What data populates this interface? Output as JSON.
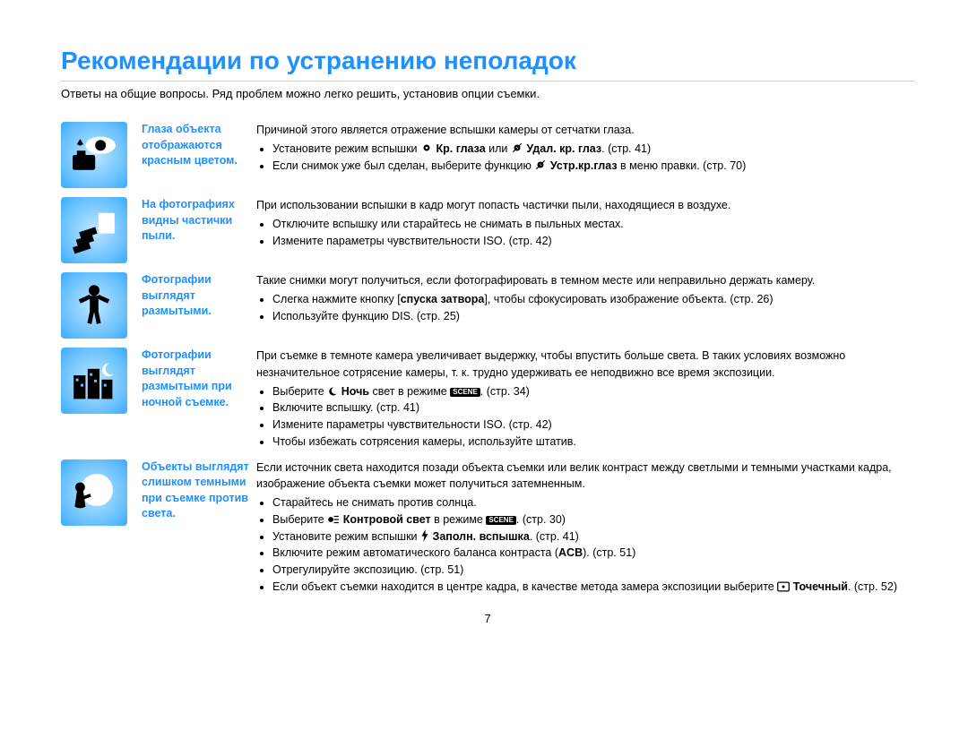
{
  "colors": {
    "title": "#1e90ff",
    "text": "#000000",
    "rule": "#cfcfcf",
    "icon_bg_inner": "#bfe7ff",
    "icon_bg_outer": "#3aaaff"
  },
  "title": "Рекомендации по устранению неполадок",
  "intro": "Ответы на общие вопросы. Ряд проблем можно легко решить, установив опции съемки.",
  "page_number": "7",
  "rows": [
    {
      "icon": "redeye",
      "heading": "Глаза объекта отображаются красным цветом.",
      "lead": "Причиной этого является отражение вспышки камеры от сетчатки глаза.",
      "bullets_html": [
        "Установите режим вспышки <svg class='inline-icon' width='14' height='14' viewBox='0 0 24 24'><circle cx='12' cy='12' r='6' fill='#000'/><circle cx='12' cy='12' r='2.2' fill='#fff'/></svg> <span class='bold'>Кр. глаза</span> или <svg class='inline-icon' width='14' height='14' viewBox='0 0 24 24'><circle cx='12' cy='12' r='6' fill='#000'/><circle cx='12' cy='12' r='2.2' fill='#fff'/><line x1='4' y1='20' x2='20' y2='4' stroke='#000' stroke-width='2'/></svg> <span class='bold'>Удал. кр. глаз</span>. (стр. 41)",
        "Если снимок уже был сделан, выберите функцию <svg class='inline-icon' width='14' height='14' viewBox='0 0 24 24'><circle cx='12' cy='12' r='6' fill='#000'/><circle cx='12' cy='12' r='2.2' fill='#fff'/><line x1='4' y1='20' x2='20' y2='4' stroke='#000' stroke-width='2'/></svg> <span class='bold'>Устр.кр.глаз</span> в меню правки. (стр. 70)"
      ]
    },
    {
      "icon": "dust",
      "heading": "На фотографиях видны частички пыли.",
      "lead": "При использовании вспышки в кадр могут попасть частички пыли, находящиеся в воздухе.",
      "bullets_html": [
        "Отключите вспышку или старайтесь не снимать в пыльных местах.",
        "Измените параметры чувствительности ISO. (стр. 42)"
      ]
    },
    {
      "icon": "blurry",
      "heading": "Фотографии выглядят размытыми.",
      "lead": "Такие снимки могут получиться, если фотографировать в темном месте или неправильно держать камеру.",
      "bullets_html": [
        "Слегка нажмите кнопку [<span class='bold'>спуска затвора</span>], чтобы сфокусировать изображение объекта. (стр. 26)",
        "Используйте функцию DIS. (стр. 25)"
      ]
    },
    {
      "icon": "night",
      "heading": "Фотографии выглядят размытыми при ночной съемке.",
      "lead": "При съемке в темноте камера увеличивает выдержку, чтобы впустить больше света.\nВ таких условиях возможно незначительное сотрясение камеры, т. к. трудно удерживать ее неподвижно все время экспозиции.",
      "bullets_html": [
        "Выберите <svg class='inline-icon' width='12' height='12' viewBox='0 0 24 24'><path d='M14 3 a9 9 0 1 0 7 14 a7 7 0 0 1 -7 -14 z' fill='#000'/></svg> <span class='bold'>Ночь</span> свет в режиме <span class='scene-badge'>SCENE</span>. (стр. 34)",
        "Включите вспышку. (стр. 41)",
        "Измените параметры чувствительности ISO. (стр. 42)",
        "Чтобы избежать сотрясения камеры, используйте штатив."
      ]
    },
    {
      "icon": "backlight",
      "heading": "Объекты выглядят слишком темными при съемке против света.",
      "lead": "Если источник света находится позади объекта съемки или велик контраст между светлыми и темными участками кадра, изображение объекта съемки может получиться затемненным.",
      "bullets_html": [
        "Старайтесь не снимать против солнца.",
        "Выберите <svg class='inline-icon' width='14' height='12' viewBox='0 0 24 20'><circle cx='7' cy='10' r='5' fill='#000'/><path d='M13 4 h9 M13 10 h9 M13 16 h9' stroke='#000' stroke-width='2'/></svg> <span class='bold'>Контровой свет</span> в режиме <span class='scene-badge'>SCENE</span>. (стр. 30)",
        "Установите режим вспышки <svg class='inline-icon' width='10' height='14' viewBox='0 0 16 24'><path d='M9 0 L2 13 h5 l-2 11 9 -15 h-5 z' fill='#000'/></svg> <span class='bold'>Заполн. вспышка</span>. (стр. 41)",
        "Включите режим автоматического баланса контраста (<span class='bold'>ACB</span>). (стр. 51)",
        "Отрегулируйте экспозицию. (стр. 51)",
        "Если объект съемки находится в центре кадра, в качестве метода замера экспозиции выберите <svg class='inline-icon' width='14' height='12' viewBox='0 0 20 16'><rect x='1' y='1' width='18' height='14' rx='2' fill='none' stroke='#000' stroke-width='1.8'/><circle cx='10' cy='8' r='2.2' fill='#000'/></svg> <span class='bold'>Точечный</span>. (стр. 52)"
      ]
    }
  ]
}
